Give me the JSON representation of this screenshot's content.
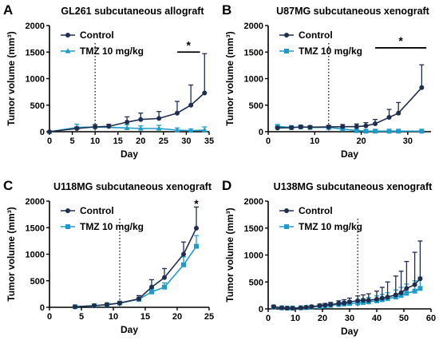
{
  "colors": {
    "control": "#1f2d4f",
    "tmz": "#1e9bc8",
    "axis": "#000000"
  },
  "chart_data": [
    {
      "type": "line",
      "panel_letter": "A",
      "title": "GL261 subcutaneous allograft",
      "xlabel": "Day",
      "ylabel": "Tumor volume (mm³)",
      "xlim": [
        0,
        35
      ],
      "ylim": [
        0,
        2000
      ],
      "xticks": [
        0,
        5,
        10,
        15,
        20,
        25,
        30,
        35
      ],
      "yticks": [
        0,
        500,
        1000,
        1500,
        2000
      ],
      "treatment_start_day": 10,
      "tmz_marker": "triangle",
      "significance": {
        "label": "*",
        "x_from": 28,
        "x_to": 33,
        "y": 1500
      },
      "series": [
        {
          "name": "Control",
          "x": [
            0,
            6,
            10,
            13,
            17,
            20,
            24,
            28,
            31,
            34
          ],
          "y": [
            0,
            60,
            90,
            100,
            180,
            230,
            250,
            350,
            500,
            730
          ],
          "err": [
            0,
            30,
            40,
            40,
            100,
            120,
            130,
            220,
            380,
            740
          ]
        },
        {
          "name": "TMZ 10 mg/kg",
          "x": [
            0,
            6,
            10,
            17,
            20,
            24,
            28,
            31,
            34
          ],
          "y": [
            0,
            80,
            90,
            70,
            60,
            60,
            30,
            20,
            30
          ],
          "err": [
            0,
            60,
            40,
            60,
            50,
            60,
            40,
            30,
            60
          ]
        }
      ]
    },
    {
      "type": "line",
      "panel_letter": "B",
      "title": "U87MG subcutaneous xenograft",
      "xlabel": "Day",
      "ylabel": "Tumor volume (mm³)",
      "xlim": [
        0,
        35
      ],
      "ylim": [
        0,
        2000
      ],
      "xticks": [
        0,
        10,
        20,
        30
      ],
      "yticks": [
        0,
        500,
        1000,
        1500,
        2000
      ],
      "treatment_start_day": 13,
      "tmz_marker": "square",
      "significance": {
        "label": "*",
        "x_from": 23,
        "x_to": 34,
        "y": 1580
      },
      "series": [
        {
          "name": "Control",
          "x": [
            2,
            5,
            7,
            9,
            13,
            16,
            19,
            21,
            23,
            26,
            28,
            33
          ],
          "y": [
            70,
            75,
            90,
            85,
            90,
            95,
            95,
            110,
            150,
            270,
            350,
            830
          ],
          "err": [
            20,
            20,
            20,
            20,
            30,
            40,
            50,
            60,
            80,
            150,
            200,
            430
          ]
        },
        {
          "name": "TMZ 10 mg/kg",
          "x": [
            2,
            5,
            7,
            9,
            13,
            16,
            19,
            21,
            23,
            26,
            28,
            33
          ],
          "y": [
            100,
            80,
            90,
            80,
            80,
            50,
            20,
            10,
            10,
            10,
            10,
            10
          ],
          "err": [
            30,
            20,
            20,
            20,
            30,
            30,
            15,
            10,
            10,
            10,
            10,
            10
          ]
        }
      ]
    },
    {
      "type": "line",
      "panel_letter": "C",
      "title": "U118MG subcutaneous xenograft",
      "xlabel": "Day",
      "ylabel": "Tumor volume (mm³)",
      "xlim": [
        0,
        25
      ],
      "ylim": [
        0,
        2000
      ],
      "xticks": [
        0,
        5,
        10,
        15,
        20,
        25
      ],
      "yticks": [
        0,
        500,
        1000,
        1500,
        2000
      ],
      "treatment_start_day": 11,
      "tmz_marker": "square",
      "significance": {
        "label": "*",
        "x_at": 23,
        "y": 1940
      },
      "series": [
        {
          "name": "Control",
          "x": [
            4,
            7,
            9,
            11,
            14,
            16,
            18,
            21,
            23
          ],
          "y": [
            10,
            30,
            50,
            80,
            160,
            380,
            560,
            1000,
            1490
          ],
          "err": [
            5,
            10,
            15,
            20,
            60,
            140,
            170,
            230,
            400
          ]
        },
        {
          "name": "TMZ 10 mg/kg",
          "x": [
            4,
            7,
            9,
            11,
            14,
            16,
            18,
            21,
            23
          ],
          "y": [
            10,
            30,
            50,
            80,
            150,
            290,
            380,
            800,
            1150
          ],
          "err": [
            5,
            10,
            15,
            20,
            40,
            60,
            80,
            150,
            200
          ]
        }
      ]
    },
    {
      "type": "line",
      "panel_letter": "D",
      "title": "U138MG subcutaneous xenograft",
      "xlabel": "Day",
      "ylabel": "Tumor volume (mm³)",
      "xlim": [
        0,
        60
      ],
      "ylim": [
        0,
        2000
      ],
      "xticks": [
        0,
        10,
        20,
        30,
        40,
        50,
        60
      ],
      "yticks": [
        0,
        500,
        1000,
        1500,
        2000
      ],
      "treatment_start_day": 33,
      "tmz_marker": "square",
      "series": [
        {
          "name": "Control",
          "x": [
            2,
            5,
            7,
            9,
            12,
            14,
            16,
            19,
            21,
            23,
            26,
            28,
            30,
            33,
            35,
            37,
            40,
            42,
            44,
            47,
            49,
            51,
            54,
            56
          ],
          "y": [
            40,
            20,
            15,
            15,
            20,
            30,
            40,
            60,
            70,
            80,
            100,
            110,
            130,
            150,
            160,
            160,
            180,
            200,
            220,
            260,
            300,
            380,
            450,
            560
          ],
          "err": [
            20,
            10,
            10,
            10,
            10,
            15,
            20,
            30,
            30,
            40,
            50,
            60,
            70,
            90,
            100,
            120,
            150,
            200,
            280,
            350,
            400,
            500,
            600,
            700
          ]
        },
        {
          "name": "TMZ 10 mg/kg",
          "x": [
            2,
            5,
            7,
            9,
            12,
            14,
            16,
            19,
            21,
            23,
            26,
            28,
            30,
            33,
            35,
            37,
            40,
            42,
            44,
            47,
            49,
            51,
            54,
            56
          ],
          "y": [
            35,
            20,
            15,
            15,
            20,
            25,
            35,
            45,
            55,
            65,
            80,
            90,
            100,
            110,
            120,
            130,
            150,
            170,
            190,
            220,
            250,
            290,
            330,
            380
          ],
          "err": [
            15,
            10,
            10,
            10,
            10,
            15,
            20,
            25,
            25,
            30,
            40,
            45,
            50,
            60,
            70,
            80,
            90,
            100,
            110,
            130,
            150,
            170,
            190,
            210
          ]
        }
      ]
    }
  ]
}
